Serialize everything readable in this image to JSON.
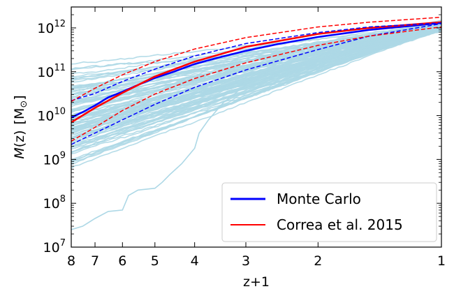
{
  "chart_data": {
    "type": "line",
    "x_scale": "log",
    "y_scale": "log",
    "x_inverted": true,
    "xlabel": "z+1",
    "ylabel": "M(z) [M⊙]",
    "ylabel_parts": {
      "pre": "M",
      "var": "(z)",
      "unit": "[M",
      "sub": "⊙",
      "close": "]"
    },
    "xlim": [
      8,
      1
    ],
    "ylim": [
      10000000.0,
      3000000000000.0
    ],
    "x_ticks": [
      8,
      7,
      6,
      5,
      4,
      3,
      2,
      1
    ],
    "x_tick_labels": [
      "8",
      "7",
      "6",
      "5",
      "4",
      "3",
      "2",
      "1"
    ],
    "y_ticks": [
      {
        "value": 10000000.0,
        "base": "10",
        "exp": "7"
      },
      {
        "value": 100000000.0,
        "base": "10",
        "exp": "8"
      },
      {
        "value": 1000000000.0,
        "base": "10",
        "exp": "9"
      },
      {
        "value": 10000000000.0,
        "base": "10",
        "exp": "10"
      },
      {
        "value": 100000000000.0,
        "base": "10",
        "exp": "11"
      },
      {
        "value": 1000000000000.0,
        "base": "10",
        "exp": "12"
      }
    ],
    "grid": false,
    "legend": {
      "placement": "lower-right",
      "entries": [
        "Monte Carlo",
        "Correa et al. 2015"
      ]
    },
    "background_tracks": {
      "color": "#add8e6",
      "count": 100,
      "final_mass": 1300000000000.0,
      "median_mass_at_z1_8": 9000000000.0,
      "scatter_dex_at_z1_8": 0.6,
      "outlier_track": {
        "x": [
          8,
          7.5,
          7,
          6.5,
          6,
          5.8,
          5.5,
          5,
          4.8,
          4.6,
          4.3,
          4,
          3.9,
          3.7,
          3.4,
          3,
          2.7,
          2.4,
          2,
          1.6,
          1.2,
          1
        ],
        "y": [
          25000000.0,
          30000000.0,
          45000000.0,
          65000000.0,
          70000000.0,
          150000000.0,
          200000000.0,
          220000000.0,
          300000000.0,
          450000000.0,
          800000000.0,
          1800000000.0,
          4000000000.0,
          8000000000.0,
          20000000000.0,
          50000000000.0,
          100000000000.0,
          200000000000.0,
          350000000000.0,
          600000000000.0,
          1000000000000.0,
          1200000000000.0
        ]
      }
    },
    "series": [
      {
        "name": "Monte Carlo",
        "color": "#0000ff",
        "style": "solid",
        "x": [
          8,
          7.5,
          7,
          6.5,
          6,
          5.5,
          5,
          4.5,
          4,
          3.5,
          3,
          2.5,
          2,
          1.5,
          1
        ],
        "y": [
          9000000000.0,
          12000000000.0,
          17000000000.0,
          26000000000.0,
          35000000000.0,
          50000000000.0,
          72000000000.0,
          100000000000.0,
          150000000000.0,
          210000000000.0,
          300000000000.0,
          430000000000.0,
          620000000000.0,
          900000000000.0,
          1300000000000.0
        ]
      },
      {
        "name": "Correa et al. 2015",
        "color": "#ff0000",
        "style": "solid",
        "x": [
          8,
          7,
          6,
          5,
          4,
          3,
          2,
          1.5,
          1
        ],
        "y": [
          7000000000.0,
          15000000000.0,
          33000000000.0,
          78000000000.0,
          170000000000.0,
          370000000000.0,
          730000000000.0,
          1000000000000.0,
          1350000000000.0
        ]
      },
      {
        "color": "#0000ff",
        "style": "dashed",
        "x": [
          8,
          7,
          6,
          5,
          4,
          3,
          2,
          1.5,
          1
        ],
        "y": [
          22000000000.0,
          32000000000.0,
          60000000000.0,
          115000000000.0,
          230000000000.0,
          440000000000.0,
          780000000000.0,
          1050000000000.0,
          1300000000000.0
        ]
      },
      {
        "color": "#0000ff",
        "style": "dashed",
        "x": [
          8,
          7,
          6,
          5,
          4,
          3,
          2,
          1.5,
          1
        ],
        "y": [
          2200000000.0,
          4000000000.0,
          8000000000.0,
          18000000000.0,
          44000000000.0,
          110000000000.0,
          320000000000.0,
          650000000000.0,
          1250000000000.0
        ]
      },
      {
        "color": "#ff0000",
        "style": "dashed",
        "x": [
          8,
          7,
          6,
          5,
          4,
          3,
          2,
          1.5,
          1
        ],
        "y": [
          21000000000.0,
          42000000000.0,
          85000000000.0,
          170000000000.0,
          330000000000.0,
          600000000000.0,
          1050000000000.0,
          1350000000000.0,
          1750000000000.0
        ]
      },
      {
        "color": "#ff0000",
        "style": "dashed",
        "x": [
          8,
          7,
          6,
          5,
          4,
          3,
          2,
          1.5,
          1
        ],
        "y": [
          2600000000.0,
          5400000000.0,
          13000000000.0,
          31000000000.0,
          70000000000.0,
          160000000000.0,
          400000000000.0,
          650000000000.0,
          1050000000000.0
        ]
      }
    ]
  }
}
